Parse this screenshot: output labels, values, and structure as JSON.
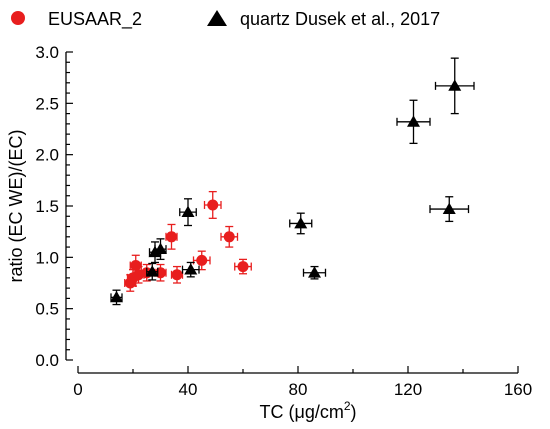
{
  "chart_data": {
    "type": "scatter",
    "xlabel": "TC (μg/cm",
    "xlabel_sup": "2",
    "xlabel_close": ")",
    "ylabel": "ratio (EC WE)/(EC)",
    "xlim": [
      0,
      160
    ],
    "ylim": [
      0.0,
      3.0
    ],
    "xticks": [
      0,
      40,
      80,
      120,
      160
    ],
    "yticks": [
      0.0,
      0.5,
      1.0,
      1.5,
      2.0,
      2.5,
      3.0
    ],
    "xtick_labels": [
      "0",
      "40",
      "80",
      "120",
      "160"
    ],
    "ytick_labels": [
      "0.0",
      "0.5",
      "1.0",
      "1.5",
      "2.0",
      "2.5",
      "3.0"
    ],
    "grid": false,
    "legend_position": "top",
    "series": [
      {
        "name": "EUSAAR_2",
        "marker": "circle",
        "color": "#e81e1e",
        "points": [
          {
            "x": 19,
            "y": 0.75,
            "xerr": 2,
            "yerr": 0.08
          },
          {
            "x": 20,
            "y": 0.8,
            "xerr": 2,
            "yerr": 0.08
          },
          {
            "x": 21,
            "y": 0.92,
            "xerr": 2,
            "yerr": 0.1
          },
          {
            "x": 22,
            "y": 0.83,
            "xerr": 2,
            "yerr": 0.08
          },
          {
            "x": 25,
            "y": 0.85,
            "xerr": 2,
            "yerr": 0.08
          },
          {
            "x": 30,
            "y": 0.85,
            "xerr": 2,
            "yerr": 0.08
          },
          {
            "x": 34,
            "y": 1.2,
            "xerr": 2,
            "yerr": 0.12
          },
          {
            "x": 36,
            "y": 0.83,
            "xerr": 2,
            "yerr": 0.08
          },
          {
            "x": 45,
            "y": 0.97,
            "xerr": 3,
            "yerr": 0.09
          },
          {
            "x": 49,
            "y": 1.51,
            "xerr": 3,
            "yerr": 0.13
          },
          {
            "x": 55,
            "y": 1.2,
            "xerr": 3,
            "yerr": 0.1
          },
          {
            "x": 60,
            "y": 0.91,
            "xerr": 3,
            "yerr": 0.07
          }
        ]
      },
      {
        "name": "quartz Dusek et al., 2017",
        "marker": "triangle",
        "color": "#000000",
        "points": [
          {
            "x": 14,
            "y": 0.61,
            "xerr": 2,
            "yerr": 0.07
          },
          {
            "x": 27,
            "y": 0.86,
            "xerr": 2,
            "yerr": 0.08
          },
          {
            "x": 28,
            "y": 1.05,
            "xerr": 2,
            "yerr": 0.1
          },
          {
            "x": 30,
            "y": 1.08,
            "xerr": 2,
            "yerr": 0.1
          },
          {
            "x": 40,
            "y": 1.44,
            "xerr": 3,
            "yerr": 0.13
          },
          {
            "x": 41,
            "y": 0.88,
            "xerr": 3,
            "yerr": 0.07
          },
          {
            "x": 81,
            "y": 1.33,
            "xerr": 4,
            "yerr": 0.1
          },
          {
            "x": 86,
            "y": 0.85,
            "xerr": 4,
            "yerr": 0.06
          },
          {
            "x": 122,
            "y": 2.32,
            "xerr": 6,
            "yerr": 0.21
          },
          {
            "x": 135,
            "y": 1.47,
            "xerr": 7,
            "yerr": 0.12
          },
          {
            "x": 137,
            "y": 2.67,
            "xerr": 7,
            "yerr": 0.27
          }
        ]
      }
    ]
  }
}
